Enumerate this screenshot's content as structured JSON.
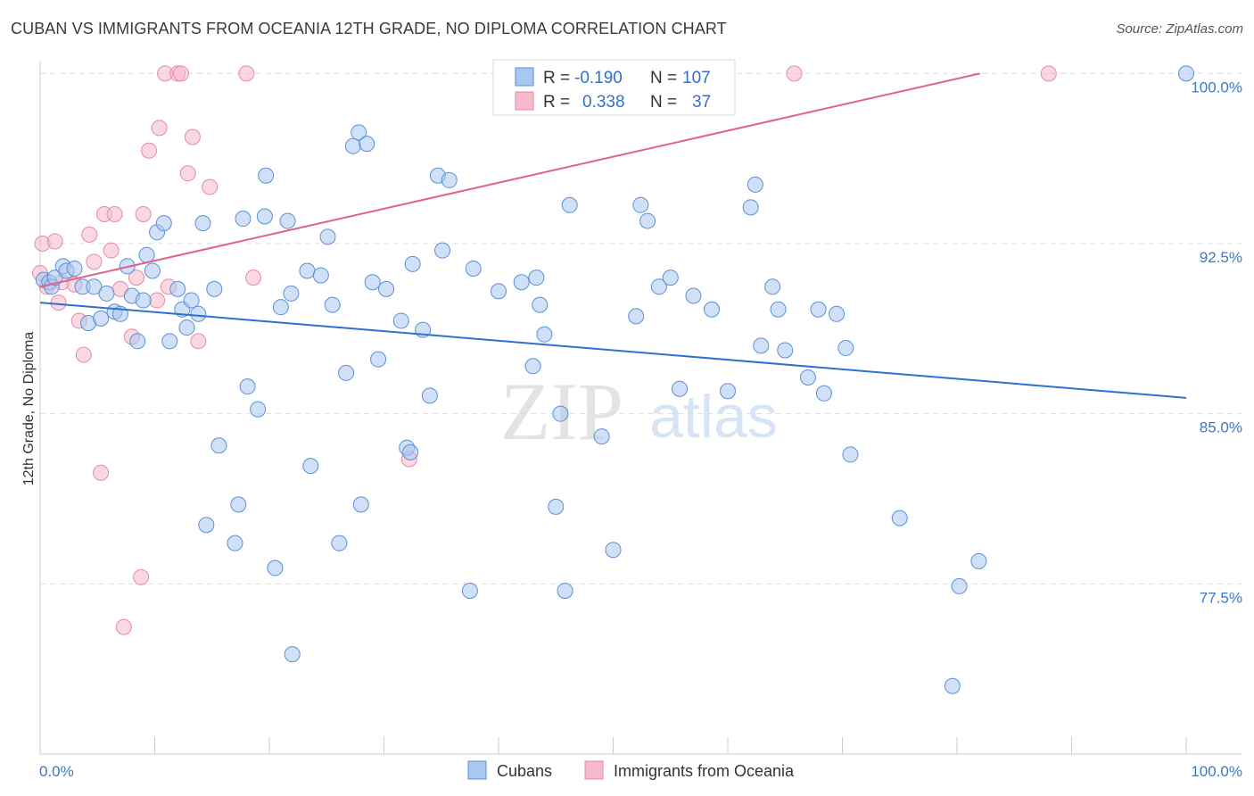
{
  "title": "CUBAN VS IMMIGRANTS FROM OCEANIA 12TH GRADE, NO DIPLOMA CORRELATION CHART",
  "source": "Source: ZipAtlas.com",
  "watermark": {
    "zip": "ZIP",
    "atlas": "atlas"
  },
  "colors": {
    "cuban_fill": "#a9c8f0",
    "cuban_stroke": "#5b8fd6",
    "cuban_line": "#2f6fd0",
    "oceania_fill": "#f6b8cb",
    "oceania_stroke": "#e58aa7",
    "oceania_line": "#e0608e",
    "grid": "#dddddd",
    "tick_text": "#3a78c9"
  },
  "legend": {
    "rows": [
      {
        "r_label": "R =",
        "r_value": "-0.190",
        "n_label": "N =",
        "n_value": "107"
      },
      {
        "r_label": "R =",
        "r_value": "0.338",
        "n_label": "N =",
        "n_value": "37"
      }
    ]
  },
  "bottom_legend": [
    "Cubans",
    "Immigrants from Oceania"
  ],
  "chart_data": {
    "type": "scatter",
    "title": "CUBAN VS IMMIGRANTS FROM OCEANIA 12TH GRADE, NO DIPLOMA CORRELATION CHART",
    "xlabel": "",
    "ylabel": "12th Grade, No Diploma",
    "xlim": [
      0,
      100
    ],
    "ylim": [
      70,
      100.8
    ],
    "x_tick_labels": [
      "0.0%",
      "100.0%"
    ],
    "y_ticks": [
      {
        "value": 100,
        "label": "100.0%"
      },
      {
        "value": 92.5,
        "label": "92.5%"
      },
      {
        "value": 85,
        "label": "85.0%"
      },
      {
        "value": 77.5,
        "label": "77.5%"
      }
    ],
    "series": [
      {
        "name": "Cubans",
        "r": -0.19,
        "n": 107,
        "trend": {
          "x": [
            0,
            100
          ],
          "y": [
            89.9,
            85.7
          ]
        },
        "points": [
          [
            0.3,
            90.9
          ],
          [
            0.8,
            90.8
          ],
          [
            1.0,
            90.6
          ],
          [
            1.3,
            91.0
          ],
          [
            2.0,
            91.5
          ],
          [
            2.3,
            91.3
          ],
          [
            3.0,
            91.4
          ],
          [
            3.7,
            90.6
          ],
          [
            4.2,
            89.0
          ],
          [
            4.7,
            90.6
          ],
          [
            5.3,
            89.2
          ],
          [
            5.8,
            90.3
          ],
          [
            6.5,
            89.5
          ],
          [
            7.0,
            89.4
          ],
          [
            7.6,
            91.5
          ],
          [
            8.0,
            90.2
          ],
          [
            8.5,
            88.2
          ],
          [
            9.0,
            90.0
          ],
          [
            9.3,
            92.0
          ],
          [
            9.8,
            91.3
          ],
          [
            10.2,
            93.0
          ],
          [
            10.8,
            93.4
          ],
          [
            11.3,
            88.2
          ],
          [
            12.0,
            90.5
          ],
          [
            12.4,
            89.6
          ],
          [
            12.8,
            88.8
          ],
          [
            13.2,
            90.0
          ],
          [
            13.8,
            89.4
          ],
          [
            14.2,
            93.4
          ],
          [
            15.2,
            90.5
          ],
          [
            15.6,
            83.6
          ],
          [
            14.5,
            80.1
          ],
          [
            17.0,
            79.3
          ],
          [
            17.3,
            81.0
          ],
          [
            17.7,
            93.6
          ],
          [
            18.1,
            86.2
          ],
          [
            19.0,
            85.2
          ],
          [
            19.6,
            93.7
          ],
          [
            19.7,
            95.5
          ],
          [
            20.5,
            78.2
          ],
          [
            21.0,
            89.7
          ],
          [
            21.6,
            93.5
          ],
          [
            21.9,
            90.3
          ],
          [
            22.0,
            74.4
          ],
          [
            23.3,
            91.3
          ],
          [
            23.6,
            82.7
          ],
          [
            24.5,
            91.1
          ],
          [
            25.1,
            92.8
          ],
          [
            25.5,
            89.8
          ],
          [
            26.1,
            79.3
          ],
          [
            26.7,
            86.8
          ],
          [
            27.3,
            96.8
          ],
          [
            27.8,
            97.4
          ],
          [
            28.0,
            81.0
          ],
          [
            28.5,
            96.9
          ],
          [
            29.0,
            90.8
          ],
          [
            29.5,
            87.4
          ],
          [
            30.2,
            90.5
          ],
          [
            31.5,
            89.1
          ],
          [
            32.0,
            83.5
          ],
          [
            32.3,
            83.3
          ],
          [
            32.5,
            91.6
          ],
          [
            33.4,
            88.7
          ],
          [
            34.0,
            85.8
          ],
          [
            34.7,
            95.5
          ],
          [
            35.1,
            92.2
          ],
          [
            35.7,
            95.3
          ],
          [
            37.5,
            77.2
          ],
          [
            37.8,
            91.4
          ],
          [
            40.0,
            90.4
          ],
          [
            42.0,
            90.8
          ],
          [
            43.0,
            87.1
          ],
          [
            43.3,
            91.0
          ],
          [
            43.6,
            89.8
          ],
          [
            44.0,
            88.5
          ],
          [
            45.0,
            80.9
          ],
          [
            45.4,
            85.0
          ],
          [
            45.8,
            77.2
          ],
          [
            46.2,
            94.2
          ],
          [
            49.0,
            84.0
          ],
          [
            50.0,
            79.0
          ],
          [
            52.0,
            89.3
          ],
          [
            52.4,
            94.2
          ],
          [
            53.0,
            93.5
          ],
          [
            54.0,
            90.6
          ],
          [
            55.0,
            91.0
          ],
          [
            55.8,
            86.1
          ],
          [
            57.0,
            90.2
          ],
          [
            58.6,
            89.6
          ],
          [
            60.0,
            86.0
          ],
          [
            62.0,
            94.1
          ],
          [
            62.4,
            95.1
          ],
          [
            62.9,
            88.0
          ],
          [
            63.9,
            90.6
          ],
          [
            64.4,
            89.6
          ],
          [
            65.0,
            87.8
          ],
          [
            67.0,
            86.6
          ],
          [
            67.9,
            89.6
          ],
          [
            68.4,
            85.9
          ],
          [
            69.5,
            89.4
          ],
          [
            70.3,
            87.9
          ],
          [
            70.7,
            83.2
          ],
          [
            75.0,
            80.4
          ],
          [
            80.2,
            77.4
          ],
          [
            81.9,
            78.5
          ],
          [
            79.6,
            73.0
          ],
          [
            100.0,
            100.0
          ]
        ]
      },
      {
        "name": "Immigrants from Oceania",
        "r": 0.338,
        "n": 37,
        "trend": {
          "x": [
            0,
            82
          ],
          "y": [
            90.6,
            100.0
          ]
        },
        "points": [
          [
            0.0,
            91.2
          ],
          [
            0.2,
            92.5
          ],
          [
            0.6,
            90.6
          ],
          [
            1.3,
            92.6
          ],
          [
            1.6,
            89.9
          ],
          [
            1.9,
            90.8
          ],
          [
            3.0,
            90.7
          ],
          [
            3.4,
            89.1
          ],
          [
            3.8,
            87.6
          ],
          [
            4.3,
            92.9
          ],
          [
            4.7,
            91.7
          ],
          [
            5.3,
            82.4
          ],
          [
            5.6,
            93.8
          ],
          [
            6.2,
            92.2
          ],
          [
            6.5,
            93.8
          ],
          [
            7.0,
            90.5
          ],
          [
            7.3,
            75.6
          ],
          [
            8.0,
            88.4
          ],
          [
            8.4,
            91.0
          ],
          [
            8.8,
            77.8
          ],
          [
            9.0,
            93.8
          ],
          [
            9.5,
            96.6
          ],
          [
            10.2,
            90.0
          ],
          [
            10.4,
            97.6
          ],
          [
            10.9,
            100.0
          ],
          [
            11.2,
            90.6
          ],
          [
            12.0,
            100.0
          ],
          [
            12.3,
            100.0
          ],
          [
            12.9,
            95.6
          ],
          [
            13.3,
            97.2
          ],
          [
            13.8,
            88.2
          ],
          [
            14.8,
            95.0
          ],
          [
            18.0,
            100.0
          ],
          [
            18.6,
            91.0
          ],
          [
            32.2,
            83.0
          ],
          [
            65.8,
            100.0
          ],
          [
            88.0,
            100.0
          ]
        ]
      }
    ]
  }
}
